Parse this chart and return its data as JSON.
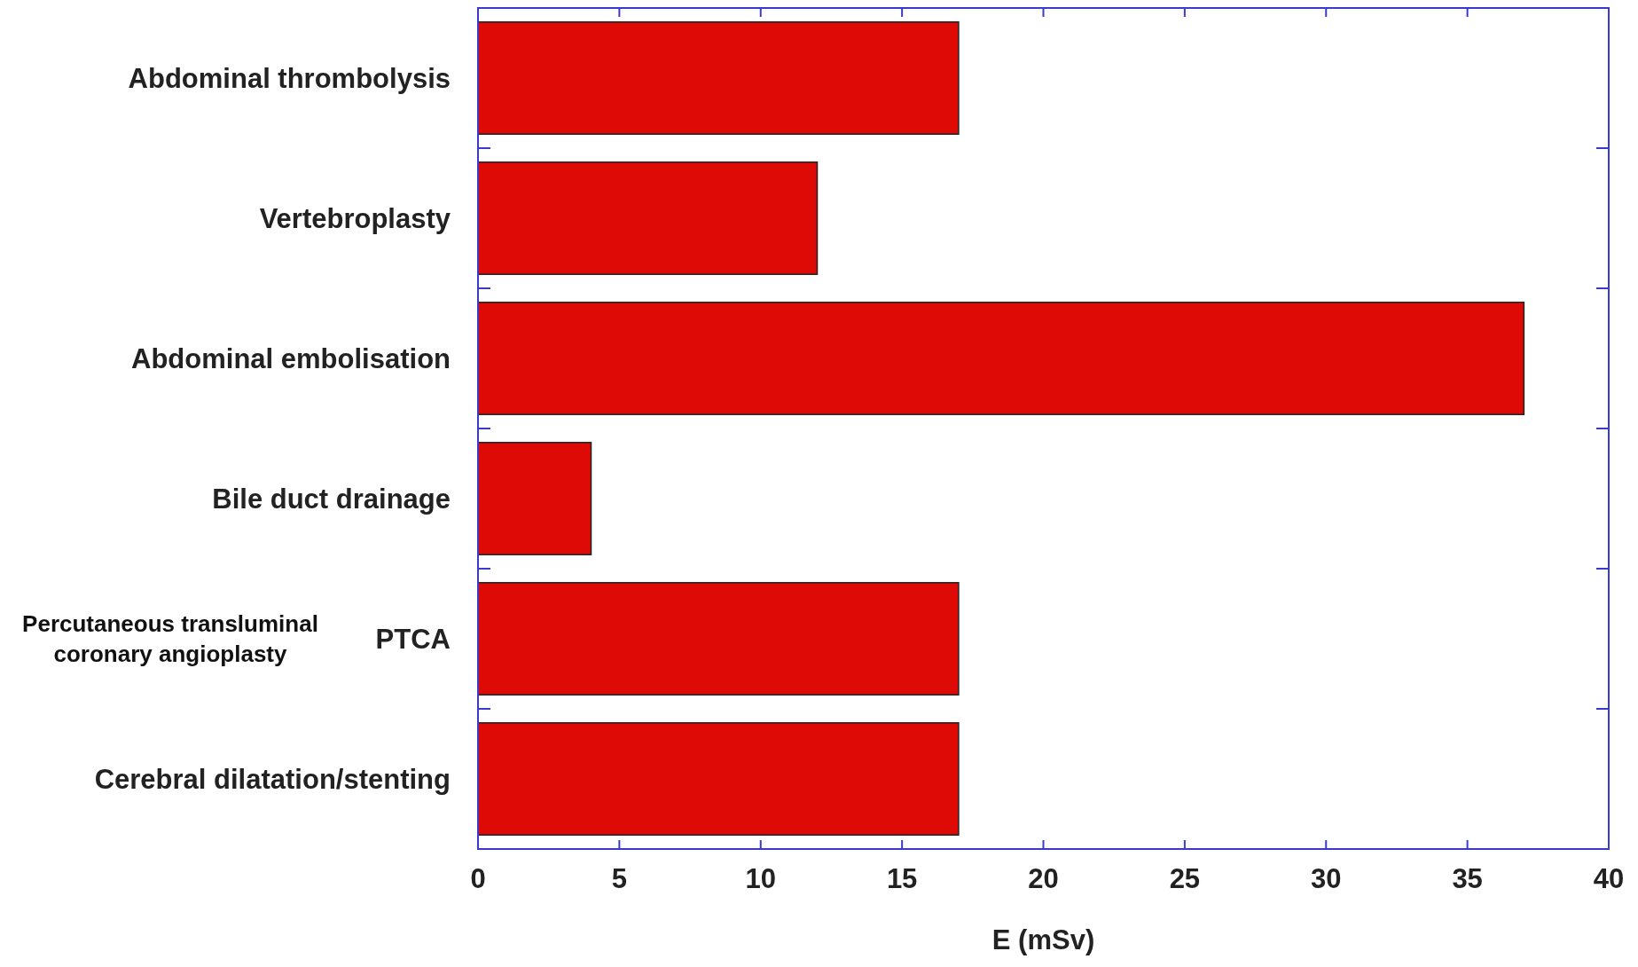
{
  "chart_data": {
    "type": "bar",
    "orientation": "horizontal",
    "categories": [
      "Abdominal thrombolysis",
      "Vertebroplasty",
      "Abdominal embolisation",
      "Bile duct drainage",
      "PTCA",
      "Cerebral dilatation/stenting"
    ],
    "values": [
      17,
      12,
      37,
      4,
      17,
      17
    ],
    "color": "#dd0a05",
    "xlim": [
      0,
      40
    ],
    "xticks": [
      0,
      5,
      10,
      15,
      20,
      25,
      30,
      35,
      40
    ],
    "xlabel": "E (mSv)",
    "annotations": [
      "Percutaneous transluminal coronary angioplasty"
    ],
    "grid": false
  }
}
